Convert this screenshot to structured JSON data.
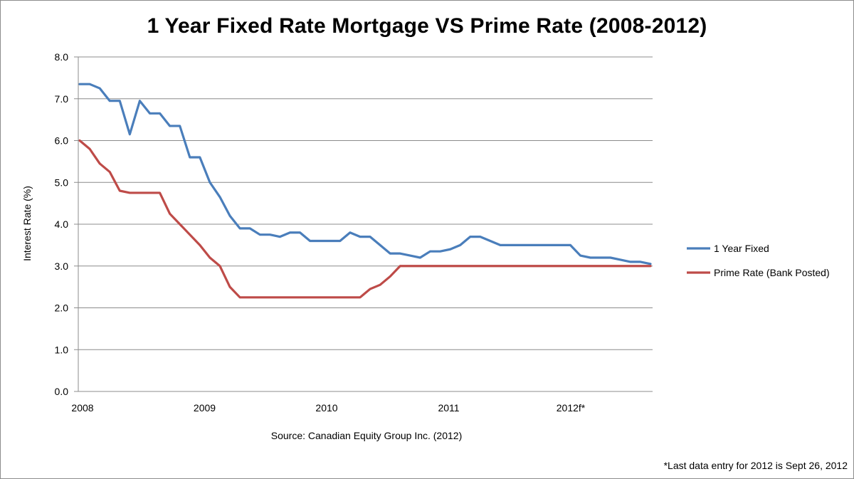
{
  "chart_data": {
    "type": "line",
    "title": "1 Year Fixed Rate Mortgage VS Prime Rate (2008-2012)",
    "xlabel": "",
    "ylabel": "Interest Rate (%)",
    "ylim": [
      0,
      8
    ],
    "yticks": [
      "0.0",
      "1.0",
      "2.0",
      "3.0",
      "4.0",
      "5.0",
      "6.0",
      "7.0",
      "8.0"
    ],
    "xticks": [
      "2008",
      "2009",
      "2010",
      "2011",
      "2012f*"
    ],
    "grid": true,
    "legend_position": "right",
    "source": "Source: Canadian Equity Group Inc. (2012)",
    "footnote": "*Last data entry for 2012 is Sept 26, 2012",
    "series": [
      {
        "name": "1 Year Fixed",
        "color": "#4a7ebb",
        "values": [
          7.35,
          7.35,
          7.25,
          6.95,
          6.95,
          6.15,
          6.95,
          6.65,
          6.65,
          6.35,
          6.35,
          5.6,
          5.6,
          5.0,
          4.65,
          4.2,
          3.9,
          3.9,
          3.75,
          3.75,
          3.7,
          3.8,
          3.8,
          3.6,
          3.6,
          3.6,
          3.6,
          3.8,
          3.7,
          3.7,
          3.5,
          3.3,
          3.3,
          3.25,
          3.2,
          3.35,
          3.35,
          3.4,
          3.5,
          3.7,
          3.7,
          3.6,
          3.5,
          3.5,
          3.5,
          3.5,
          3.5,
          3.5,
          3.5,
          3.5,
          3.25,
          3.2,
          3.2,
          3.2,
          3.15,
          3.1,
          3.1,
          3.05
        ]
      },
      {
        "name": "Prime Rate (Bank Posted)",
        "color": "#be4b48",
        "values": [
          6.0,
          5.8,
          5.45,
          5.25,
          4.8,
          4.75,
          4.75,
          4.75,
          4.75,
          4.25,
          4.0,
          3.75,
          3.5,
          3.2,
          3.0,
          2.5,
          2.25,
          2.25,
          2.25,
          2.25,
          2.25,
          2.25,
          2.25,
          2.25,
          2.25,
          2.25,
          2.25,
          2.25,
          2.25,
          2.45,
          2.55,
          2.75,
          3.0,
          3.0,
          3.0,
          3.0,
          3.0,
          3.0,
          3.0,
          3.0,
          3.0,
          3.0,
          3.0,
          3.0,
          3.0,
          3.0,
          3.0,
          3.0,
          3.0,
          3.0,
          3.0,
          3.0,
          3.0,
          3.0,
          3.0,
          3.0,
          3.0,
          3.0
        ]
      }
    ]
  }
}
